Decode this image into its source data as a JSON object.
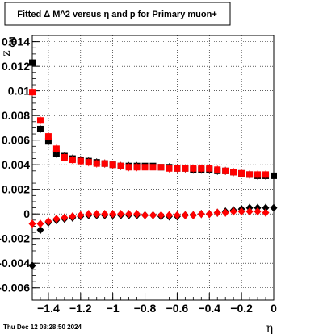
{
  "chart_data": {
    "type": "scatter",
    "title": "Fitted Δ M^2 versus η and p for Primary muon+",
    "xlabel": "η",
    "ylabel": "z",
    "ylabel_sub": "dM",
    "xlim": [
      -1.5,
      0.0
    ],
    "ylim": [
      -0.007,
      0.0145
    ],
    "grid": true,
    "x_ticks": [
      -1.4,
      -1.2,
      -1,
      -0.8,
      -0.6,
      -0.4,
      -0.2,
      0
    ],
    "x_tick_labels": [
      "−1.4",
      "−1.2",
      "−1",
      "−0.8",
      "−0.6",
      "−0.4",
      "−0.2",
      "0"
    ],
    "y_ticks": [
      -0.006,
      -0.004,
      -0.002,
      0,
      0.002,
      0.004,
      0.006,
      0.008,
      0.01,
      0.012,
      0.014
    ],
    "y_tick_labels": [
      "-0.006",
      "-0.004",
      "-0.002",
      "0",
      "0.002",
      "0.004",
      "0.006",
      "0.008",
      "0.01",
      "0.012",
      "0.014"
    ],
    "series": [
      {
        "marker": "square",
        "color": "#000000",
        "x": [
          -1.5,
          -1.45,
          -1.4,
          -1.35,
          -1.3,
          -1.25,
          -1.2,
          -1.15,
          -1.1,
          -1.05,
          -1.0,
          -0.95,
          -0.9,
          -0.85,
          -0.8,
          -0.75,
          -0.7,
          -0.65,
          -0.6,
          -0.55,
          -0.5,
          -0.45,
          -0.4,
          -0.35,
          -0.3,
          -0.25,
          -0.2,
          -0.15,
          -0.1,
          -0.05,
          0.0
        ],
        "y": [
          0.0123,
          0.0069,
          0.0059,
          0.0049,
          0.0047,
          0.0045,
          0.0044,
          0.0043,
          0.0042,
          0.0041,
          0.004,
          0.0039,
          0.0039,
          0.0039,
          0.0039,
          0.0039,
          0.0038,
          0.0038,
          0.0037,
          0.0037,
          0.0036,
          0.0036,
          0.0036,
          0.0035,
          0.0035,
          0.0034,
          0.0033,
          0.0032,
          0.0031,
          0.0031,
          0.0031
        ]
      },
      {
        "marker": "square",
        "color": "#ff0000",
        "x": [
          -1.5,
          -1.45,
          -1.4,
          -1.35,
          -1.3,
          -1.25,
          -1.2,
          -1.15,
          -1.1,
          -1.05,
          -1.0,
          -0.95,
          -0.9,
          -0.85,
          -0.8,
          -0.75,
          -0.7,
          -0.65,
          -0.6,
          -0.55,
          -0.5,
          -0.45,
          -0.4,
          -0.35,
          -0.3,
          -0.25,
          -0.2,
          -0.15,
          -0.1,
          -0.05
        ],
        "y": [
          0.0099,
          0.0076,
          0.0063,
          0.0053,
          0.0046,
          0.0044,
          0.0043,
          0.0042,
          0.0041,
          0.0041,
          0.004,
          0.0039,
          0.0038,
          0.0038,
          0.0038,
          0.0038,
          0.0038,
          0.0037,
          0.0037,
          0.0037,
          0.0037,
          0.0037,
          0.0037,
          0.0036,
          0.0035,
          0.0034,
          0.0033,
          0.0032,
          0.0032,
          0.0032
        ]
      },
      {
        "marker": "diamond",
        "color": "#000000",
        "x": [
          -1.5,
          -1.45,
          -1.4,
          -1.35,
          -1.3,
          -1.25,
          -1.2,
          -1.15,
          -1.1,
          -1.05,
          -1.0,
          -0.95,
          -0.9,
          -0.85,
          -0.8,
          -0.75,
          -0.7,
          -0.65,
          -0.6,
          -0.55,
          -0.5,
          -0.45,
          -0.4,
          -0.35,
          -0.3,
          -0.25,
          -0.2,
          -0.15,
          -0.1,
          -0.05,
          0.0
        ],
        "y": [
          -0.0042,
          -0.0013,
          -0.0007,
          -0.0005,
          -0.0004,
          -0.0003,
          -0.0002,
          -0.0001,
          -0.0001,
          -0.0001,
          -0.0001,
          -0.0001,
          -0.0001,
          -0.0001,
          -0.0001,
          -0.0001,
          -0.0002,
          -0.0002,
          -0.0002,
          -0.0001,
          -0.0001,
          0.0,
          0.0,
          0.0001,
          0.0002,
          0.0003,
          0.0004,
          0.0005,
          0.0005,
          0.0005,
          0.0005
        ]
      },
      {
        "marker": "diamond",
        "color": "#ff0000",
        "x": [
          -1.5,
          -1.45,
          -1.4,
          -1.35,
          -1.3,
          -1.25,
          -1.2,
          -1.15,
          -1.1,
          -1.05,
          -1.0,
          -0.95,
          -0.9,
          -0.85,
          -0.8,
          -0.75,
          -0.7,
          -0.65,
          -0.6,
          -0.55,
          -0.5,
          -0.45,
          -0.4,
          -0.35,
          -0.3,
          -0.25,
          -0.2,
          -0.15,
          -0.1,
          -0.05
        ],
        "y": [
          -0.0008,
          -0.0008,
          -0.0006,
          -0.0004,
          -0.0003,
          -0.0002,
          -0.0001,
          0.0,
          0.0,
          0.0,
          0.0,
          0.0,
          0.0,
          0.0,
          -0.0001,
          -0.0001,
          -0.0001,
          -0.0001,
          -0.0001,
          -0.0001,
          -0.0001,
          0.0,
          0.0,
          0.0001,
          0.0001,
          0.0002,
          0.0002,
          0.0002,
          0.0002,
          0.0001
        ]
      }
    ]
  },
  "footer": {
    "date": "Thu Dec 12 08:28:50 2024"
  }
}
